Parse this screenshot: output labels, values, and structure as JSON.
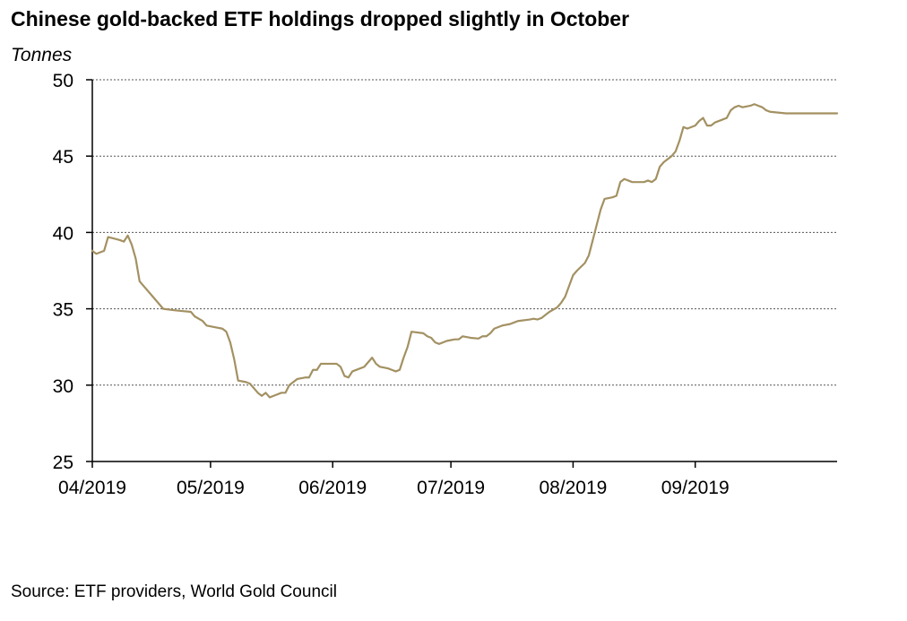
{
  "title": "Chinese gold-backed ETF holdings dropped slightly in October",
  "unit_label": "Tonnes",
  "source": "Source: ETF providers, World Gold Council",
  "colors": {
    "line": "#a39162",
    "grid": "#555555",
    "axis": "#000000"
  },
  "chart_data": {
    "type": "line",
    "title": "Chinese gold-backed ETF holdings dropped slightly in October",
    "ylabel": "Tonnes",
    "xlabel": "",
    "ylim": [
      25,
      50
    ],
    "yticks": [
      25,
      30,
      35,
      40,
      45,
      50
    ],
    "xlim": [
      "2019-04-01",
      "2019-10-07"
    ],
    "xticks": [
      {
        "date": "2019-04-01",
        "label": "04/2019"
      },
      {
        "date": "2019-05-01",
        "label": "05/2019"
      },
      {
        "date": "2019-06-01",
        "label": "06/2019"
      },
      {
        "date": "2019-07-01",
        "label": "07/2019"
      },
      {
        "date": "2019-08-01",
        "label": "08/2019"
      },
      {
        "date": "2019-09-01",
        "label": "09/2019"
      }
    ],
    "grid": true,
    "series": [
      {
        "points": [
          [
            "2019-04-01",
            38.8
          ],
          [
            "2019-04-02",
            38.6
          ],
          [
            "2019-04-04",
            38.8
          ],
          [
            "2019-04-05",
            39.7
          ],
          [
            "2019-04-08",
            39.5
          ],
          [
            "2019-04-09",
            39.4
          ],
          [
            "2019-04-10",
            39.8
          ],
          [
            "2019-04-11",
            39.2
          ],
          [
            "2019-04-12",
            38.3
          ],
          [
            "2019-04-13",
            36.8
          ],
          [
            "2019-04-16",
            35.9
          ],
          [
            "2019-04-19",
            35.0
          ],
          [
            "2019-04-22",
            34.9
          ],
          [
            "2019-04-24",
            34.85
          ],
          [
            "2019-04-26",
            34.8
          ],
          [
            "2019-04-27",
            34.5
          ],
          [
            "2019-04-29",
            34.2
          ],
          [
            "2019-04-30",
            33.9
          ],
          [
            "2019-05-02",
            33.8
          ],
          [
            "2019-05-04",
            33.7
          ],
          [
            "2019-05-05",
            33.5
          ],
          [
            "2019-05-06",
            32.8
          ],
          [
            "2019-05-07",
            31.7
          ],
          [
            "2019-05-08",
            30.3
          ],
          [
            "2019-05-10",
            30.2
          ],
          [
            "2019-05-11",
            30.1
          ],
          [
            "2019-05-12",
            29.8
          ],
          [
            "2019-05-13",
            29.5
          ],
          [
            "2019-05-14",
            29.3
          ],
          [
            "2019-05-15",
            29.5
          ],
          [
            "2019-05-16",
            29.2
          ],
          [
            "2019-05-17",
            29.3
          ],
          [
            "2019-05-19",
            29.5
          ],
          [
            "2019-05-20",
            29.5
          ],
          [
            "2019-05-21",
            30.0
          ],
          [
            "2019-05-22",
            30.2
          ],
          [
            "2019-05-23",
            30.4
          ],
          [
            "2019-05-25",
            30.5
          ],
          [
            "2019-05-26",
            30.5
          ],
          [
            "2019-05-27",
            31.0
          ],
          [
            "2019-05-28",
            31.0
          ],
          [
            "2019-05-29",
            31.4
          ],
          [
            "2019-05-31",
            31.4
          ],
          [
            "2019-06-02",
            31.4
          ],
          [
            "2019-06-03",
            31.2
          ],
          [
            "2019-06-04",
            30.6
          ],
          [
            "2019-06-05",
            30.5
          ],
          [
            "2019-06-06",
            30.9
          ],
          [
            "2019-06-08",
            31.1
          ],
          [
            "2019-06-09",
            31.2
          ],
          [
            "2019-06-10",
            31.5
          ],
          [
            "2019-06-11",
            31.8
          ],
          [
            "2019-06-12",
            31.4
          ],
          [
            "2019-06-13",
            31.2
          ],
          [
            "2019-06-15",
            31.1
          ],
          [
            "2019-06-16",
            31.0
          ],
          [
            "2019-06-17",
            30.9
          ],
          [
            "2019-06-18",
            31.0
          ],
          [
            "2019-06-19",
            31.8
          ],
          [
            "2019-06-20",
            32.5
          ],
          [
            "2019-06-21",
            33.5
          ],
          [
            "2019-06-24",
            33.4
          ],
          [
            "2019-06-25",
            33.2
          ],
          [
            "2019-06-26",
            33.1
          ],
          [
            "2019-06-27",
            32.8
          ],
          [
            "2019-06-28",
            32.7
          ],
          [
            "2019-06-30",
            32.9
          ],
          [
            "2019-07-02",
            33.0
          ],
          [
            "2019-07-03",
            33.0
          ],
          [
            "2019-07-04",
            33.2
          ],
          [
            "2019-07-06",
            33.1
          ],
          [
            "2019-07-08",
            33.05
          ],
          [
            "2019-07-09",
            33.2
          ],
          [
            "2019-07-10",
            33.2
          ],
          [
            "2019-07-11",
            33.4
          ],
          [
            "2019-07-12",
            33.7
          ],
          [
            "2019-07-14",
            33.9
          ],
          [
            "2019-07-16",
            34.0
          ],
          [
            "2019-07-17",
            34.1
          ],
          [
            "2019-07-18",
            34.2
          ],
          [
            "2019-07-21",
            34.3
          ],
          [
            "2019-07-22",
            34.35
          ],
          [
            "2019-07-23",
            34.3
          ],
          [
            "2019-07-24",
            34.4
          ],
          [
            "2019-07-25",
            34.6
          ],
          [
            "2019-07-26",
            34.8
          ],
          [
            "2019-07-28",
            35.1
          ],
          [
            "2019-07-29",
            35.4
          ],
          [
            "2019-07-30",
            35.8
          ],
          [
            "2019-07-31",
            36.5
          ],
          [
            "2019-08-01",
            37.2
          ],
          [
            "2019-08-02",
            37.5
          ],
          [
            "2019-08-04",
            38.0
          ],
          [
            "2019-08-05",
            38.5
          ],
          [
            "2019-08-06",
            39.5
          ],
          [
            "2019-08-07",
            40.5
          ],
          [
            "2019-08-08",
            41.5
          ],
          [
            "2019-08-09",
            42.2
          ],
          [
            "2019-08-11",
            42.3
          ],
          [
            "2019-08-12",
            42.4
          ],
          [
            "2019-08-13",
            43.3
          ],
          [
            "2019-08-14",
            43.5
          ],
          [
            "2019-08-15",
            43.4
          ],
          [
            "2019-08-16",
            43.3
          ],
          [
            "2019-08-19",
            43.3
          ],
          [
            "2019-08-20",
            43.4
          ],
          [
            "2019-08-21",
            43.3
          ],
          [
            "2019-08-22",
            43.5
          ],
          [
            "2019-08-23",
            44.3
          ],
          [
            "2019-08-24",
            44.6
          ],
          [
            "2019-08-26",
            45.0
          ],
          [
            "2019-08-27",
            45.3
          ],
          [
            "2019-08-28",
            46.0
          ],
          [
            "2019-08-29",
            46.9
          ],
          [
            "2019-08-30",
            46.8
          ],
          [
            "2019-09-01",
            47.0
          ],
          [
            "2019-09-02",
            47.3
          ],
          [
            "2019-09-03",
            47.5
          ],
          [
            "2019-09-04",
            47.0
          ],
          [
            "2019-09-05",
            47.0
          ],
          [
            "2019-09-06",
            47.2
          ],
          [
            "2019-09-08",
            47.4
          ],
          [
            "2019-09-09",
            47.5
          ],
          [
            "2019-09-10",
            48.0
          ],
          [
            "2019-09-11",
            48.2
          ],
          [
            "2019-09-12",
            48.3
          ],
          [
            "2019-09-13",
            48.2
          ],
          [
            "2019-09-15",
            48.3
          ],
          [
            "2019-09-16",
            48.4
          ],
          [
            "2019-09-17",
            48.3
          ],
          [
            "2019-09-18",
            48.2
          ],
          [
            "2019-09-19",
            48.0
          ],
          [
            "2019-09-20",
            47.9
          ],
          [
            "2019-09-24",
            47.8
          ],
          [
            "2019-09-28",
            47.8
          ],
          [
            "2019-10-07",
            47.8
          ]
        ]
      }
    ]
  }
}
